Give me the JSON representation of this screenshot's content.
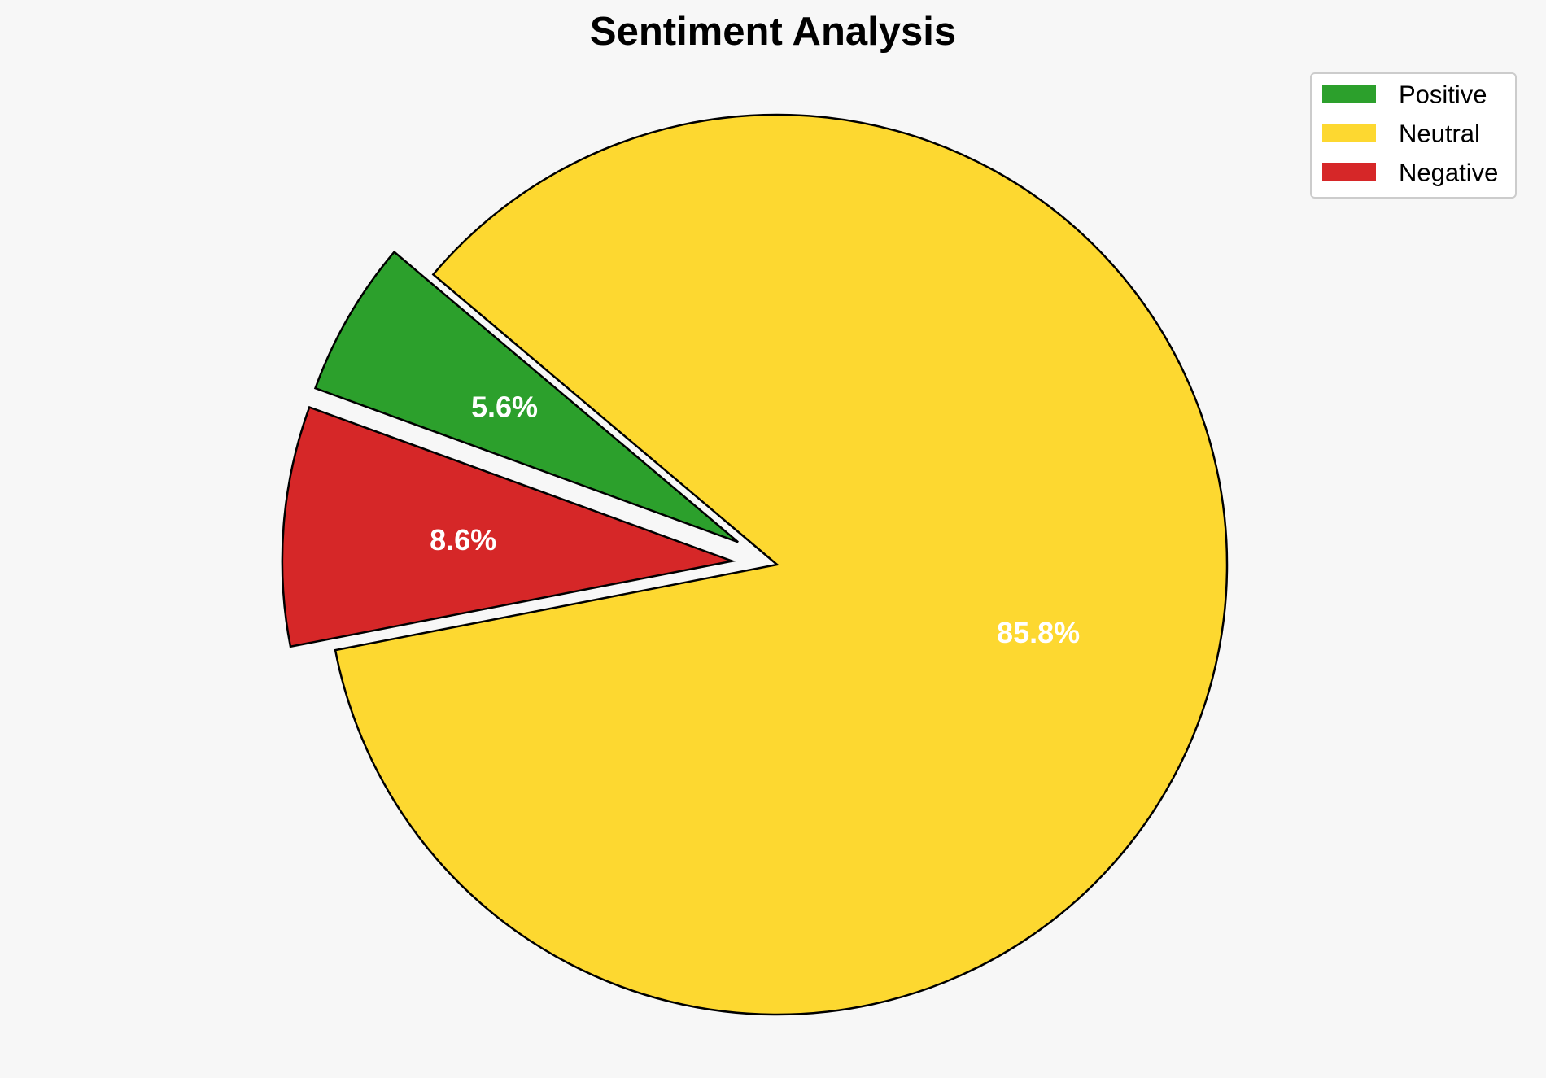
{
  "chart_data": {
    "type": "pie",
    "title": "Sentiment Analysis",
    "slices": [
      {
        "label": "Positive",
        "value": 5.6,
        "display": "5.6%",
        "color": "#2ca02c",
        "exploded": true
      },
      {
        "label": "Neutral",
        "value": 85.8,
        "display": "85.8%",
        "color": "#fdd830",
        "exploded": false
      },
      {
        "label": "Negative",
        "value": 8.6,
        "display": "8.6%",
        "color": "#d62728",
        "exploded": true
      }
    ],
    "start_angle_deg": 160,
    "direction": "clockwise",
    "legend": {
      "position": "top-right",
      "entries": [
        "Positive",
        "Neutral",
        "Negative"
      ]
    }
  }
}
